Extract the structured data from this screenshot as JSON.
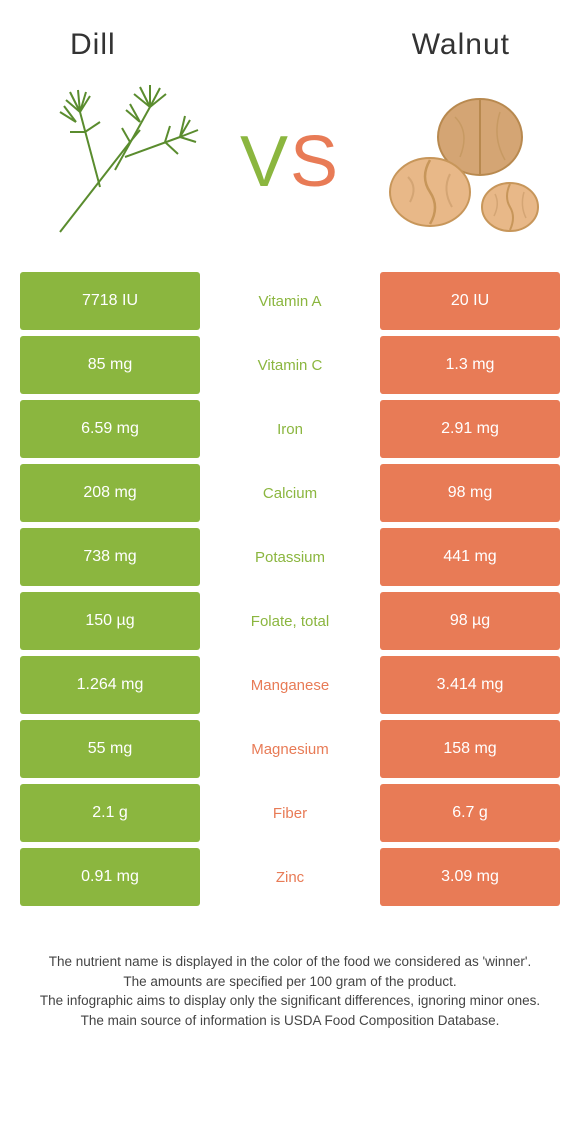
{
  "header": {
    "left_title": "Dill",
    "right_title": "Walnut"
  },
  "vs": {
    "v": "V",
    "s": "S"
  },
  "colors": {
    "green": "#8bb63f",
    "orange": "#e87b56",
    "walnut_shell": "#d4a574",
    "walnut_meat": "#e8b888",
    "dill_stem": "#5a8c2e",
    "dill_frond": "#7bb342"
  },
  "rows": [
    {
      "nutrient": "Vitamin A",
      "left": "7718 IU",
      "right": "20 IU",
      "winner": "left"
    },
    {
      "nutrient": "Vitamin C",
      "left": "85 mg",
      "right": "1.3 mg",
      "winner": "left"
    },
    {
      "nutrient": "Iron",
      "left": "6.59 mg",
      "right": "2.91 mg",
      "winner": "left"
    },
    {
      "nutrient": "Calcium",
      "left": "208 mg",
      "right": "98 mg",
      "winner": "left"
    },
    {
      "nutrient": "Potassium",
      "left": "738 mg",
      "right": "441 mg",
      "winner": "left"
    },
    {
      "nutrient": "Folate, total",
      "left": "150 µg",
      "right": "98 µg",
      "winner": "left"
    },
    {
      "nutrient": "Manganese",
      "left": "1.264 mg",
      "right": "3.414 mg",
      "winner": "right"
    },
    {
      "nutrient": "Magnesium",
      "left": "55 mg",
      "right": "158 mg",
      "winner": "right"
    },
    {
      "nutrient": "Fiber",
      "left": "2.1 g",
      "right": "6.7 g",
      "winner": "right"
    },
    {
      "nutrient": "Zinc",
      "left": "0.91 mg",
      "right": "3.09 mg",
      "winner": "right"
    }
  ],
  "footer": {
    "line1": "The nutrient name is displayed in the color of the food we considered as 'winner'.",
    "line2": "The amounts are specified per 100 gram of the product.",
    "line3": "The infographic aims to display only the significant differences, ignoring minor ones.",
    "line4": "The main source of information is USDA Food Composition Database."
  }
}
